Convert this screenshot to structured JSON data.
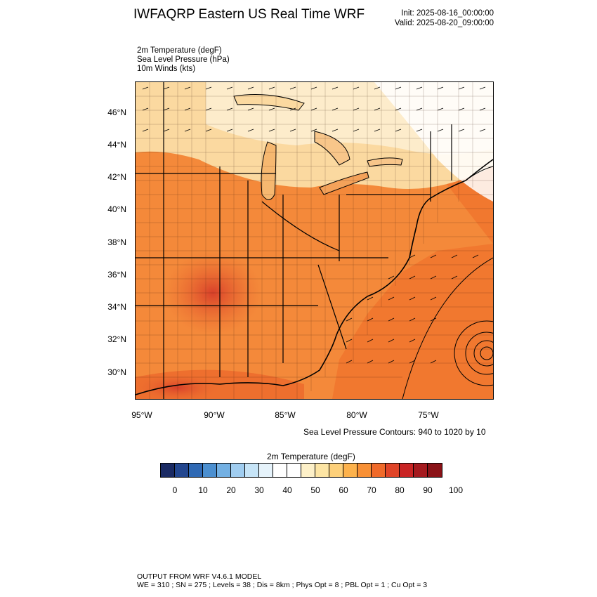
{
  "header": {
    "title": "IWFAQRP Eastern US Real Time WRF",
    "init": "Init: 2025-08-16_00:00:00",
    "valid": "Valid: 2025-08-20_09:00:00"
  },
  "fields": [
    "2m Temperature   (degF)",
    "Sea Level Pressure   (hPa)",
    "10m Winds   (kts)"
  ],
  "axes": {
    "lat_labels": [
      "46°N",
      "44°N",
      "42°N",
      "40°N",
      "38°N",
      "36°N",
      "34°N",
      "32°N",
      "30°N"
    ],
    "lon_labels": [
      "95°W",
      "90°W",
      "85°W",
      "80°W",
      "75°W"
    ]
  },
  "contour_note": "Sea Level Pressure Contours: 940 to 1020 by 10",
  "colorbar": {
    "title": "2m Temperature  (degF)",
    "colors": [
      "#1a2a63",
      "#22468f",
      "#2f69b4",
      "#4b8fd0",
      "#73b0e3",
      "#a0cdf0",
      "#c6e4f7",
      "#e6f3fb",
      "#ffffff",
      "#ffffff",
      "#fdf0c8",
      "#fde5a4",
      "#fdd07a",
      "#fdb24c",
      "#f89035",
      "#f06a2a",
      "#e04428",
      "#c92424",
      "#a51a1f",
      "#8a1217"
    ],
    "labels": [
      "0",
      "10",
      "20",
      "30",
      "40",
      "50",
      "60",
      "70",
      "80",
      "90",
      "100"
    ]
  },
  "footer": {
    "line1": "OUTPUT FROM WRF V4.6.1 MODEL",
    "line2": "WE = 310 ; SN = 275 ; Levels = 38 ; Dis = 8km ; Phys Opt = 8 ; PBL Opt = 1 ; Cu Opt = 3"
  }
}
